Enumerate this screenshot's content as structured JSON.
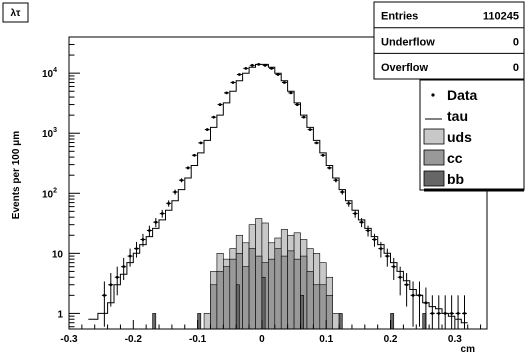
{
  "chart_data": {
    "type": "histogram",
    "title": "λτ",
    "xlabel": "cm",
    "ylabel": "Events per 100 μm",
    "xlim": [
      -0.3,
      0.35
    ],
    "ylim": [
      0.55,
      40000
    ],
    "yscale": "log",
    "grid": false,
    "legend_position": "top-right",
    "x_ticks": [
      "-0.3",
      "-0.2",
      "-0.1",
      "0",
      "0.1",
      "0.2",
      "0.3"
    ],
    "y_ticks": [
      {
        "value": 1,
        "label": "1",
        "exp": ""
      },
      {
        "value": 10,
        "label": "10",
        "exp": ""
      },
      {
        "value": 100,
        "label": "10",
        "exp": "2"
      },
      {
        "value": 1000,
        "label": "10",
        "exp": "3"
      },
      {
        "value": 10000,
        "label": "10",
        "exp": "4"
      }
    ],
    "stats": [
      {
        "label": "Entries",
        "value": "110245"
      },
      {
        "label": "Underflow",
        "value": "0"
      },
      {
        "label": "Overflow",
        "value": "0"
      }
    ],
    "legend": [
      {
        "label": "Data",
        "style": "marker",
        "color": "#000000"
      },
      {
        "label": "tau",
        "style": "line",
        "color": "#000000"
      },
      {
        "label": "uds",
        "style": "fill",
        "color": "#c8c8c8"
      },
      {
        "label": "cc",
        "style": "fill",
        "color": "#999999"
      },
      {
        "label": "bb",
        "style": "fill",
        "color": "#666666"
      }
    ],
    "colors": {
      "uds": "#c8c8c8",
      "cc": "#999999",
      "bb": "#666666",
      "line": "#000000"
    },
    "series": [
      {
        "name": "tau",
        "kind": "step-line",
        "x": [
          -0.27,
          -0.255,
          -0.24,
          -0.23,
          -0.22,
          -0.21,
          -0.2,
          -0.19,
          -0.18,
          -0.17,
          -0.16,
          -0.15,
          -0.14,
          -0.13,
          -0.12,
          -0.11,
          -0.1,
          -0.09,
          -0.08,
          -0.07,
          -0.06,
          -0.05,
          -0.04,
          -0.03,
          -0.02,
          -0.01,
          0,
          0.01,
          0.02,
          0.03,
          0.04,
          0.05,
          0.06,
          0.07,
          0.08,
          0.09,
          0.1,
          0.11,
          0.12,
          0.13,
          0.14,
          0.15,
          0.16,
          0.17,
          0.18,
          0.19,
          0.2,
          0.21,
          0.22,
          0.23,
          0.24,
          0.25,
          0.26,
          0.27,
          0.28,
          0.29,
          0.3,
          0.31,
          0.32
        ],
        "y": [
          0.8,
          1,
          1.5,
          3,
          4.5,
          7,
          10,
          14,
          19,
          26,
          36,
          52,
          75,
          115,
          180,
          290,
          470,
          760,
          1250,
          2000,
          3200,
          5000,
          7500,
          10000,
          12500,
          14000,
          14000,
          12500,
          10000,
          7500,
          5000,
          3200,
          2000,
          1250,
          760,
          470,
          290,
          180,
          115,
          75,
          52,
          36,
          26,
          19,
          14,
          10,
          7,
          5,
          3.5,
          2.5,
          2,
          1.5,
          1.3,
          1.2,
          1,
          0.9,
          0.8,
          0.7,
          0.7
        ]
      },
      {
        "name": "Data",
        "kind": "points",
        "x": [
          -0.245,
          -0.235,
          -0.225,
          -0.215,
          -0.205,
          -0.195,
          -0.185,
          -0.175,
          -0.165,
          -0.155,
          -0.145,
          -0.135,
          -0.125,
          -0.115,
          -0.105,
          -0.095,
          -0.085,
          -0.075,
          -0.065,
          -0.055,
          -0.045,
          -0.035,
          -0.025,
          -0.015,
          -0.005,
          0.005,
          0.015,
          0.025,
          0.035,
          0.045,
          0.055,
          0.065,
          0.075,
          0.085,
          0.095,
          0.105,
          0.115,
          0.125,
          0.135,
          0.145,
          0.155,
          0.165,
          0.175,
          0.185,
          0.195,
          0.205,
          0.215,
          0.225,
          0.235,
          0.245,
          0.255,
          0.265,
          0.275,
          0.285,
          0.295,
          0.305,
          0.315
        ],
        "y": [
          2,
          3,
          4,
          6,
          9,
          12,
          17,
          24,
          33,
          46,
          68,
          105,
          165,
          265,
          430,
          690,
          1150,
          1850,
          3000,
          4700,
          7000,
          9500,
          12000,
          13500,
          14000,
          13500,
          12000,
          9500,
          7000,
          4700,
          3000,
          1850,
          1150,
          690,
          430,
          265,
          165,
          105,
          68,
          46,
          33,
          24,
          17,
          12,
          9,
          6,
          4,
          3,
          2,
          2,
          1.5,
          1,
          1,
          1,
          1,
          1,
          1
        ],
        "yerr": [
          1.4,
          1.7,
          2,
          2.4,
          3,
          3.5,
          4.1,
          4.9,
          5.7,
          6.8,
          8.2,
          10,
          13,
          16,
          21,
          26,
          34,
          43,
          55,
          69,
          84,
          97,
          110,
          116,
          118,
          116,
          110,
          97,
          84,
          69,
          55,
          43,
          34,
          26,
          21,
          16,
          13,
          10,
          8.2,
          6.8,
          5.7,
          4.9,
          4.1,
          3.5,
          3,
          2.4,
          2,
          1.7,
          1.4,
          1.4,
          1.2,
          1,
          1,
          1,
          1,
          1,
          1
        ]
      },
      {
        "name": "uds",
        "kind": "step-fill",
        "x": [
          -0.1,
          -0.09,
          -0.08,
          -0.07,
          -0.06,
          -0.05,
          -0.04,
          -0.03,
          -0.02,
          -0.01,
          0,
          0.01,
          0.02,
          0.03,
          0.04,
          0.05,
          0.06,
          0.07,
          0.08,
          0.09,
          0.1,
          0.11,
          0.12
        ],
        "y": [
          0.55,
          1,
          5,
          10,
          8,
          12,
          20,
          15,
          30,
          38,
          32,
          15,
          18,
          25,
          20,
          22,
          17,
          12,
          10,
          7,
          4,
          1,
          0.55
        ]
      },
      {
        "name": "cc",
        "kind": "step-fill",
        "x": [
          -0.09,
          -0.08,
          -0.07,
          -0.06,
          -0.05,
          -0.04,
          -0.03,
          -0.02,
          -0.01,
          0,
          0.01,
          0.02,
          0.03,
          0.04,
          0.05,
          0.06,
          0.07,
          0.08,
          0.09,
          0.1,
          0.11
        ],
        "y": [
          0.55,
          3,
          5,
          6,
          8,
          10,
          6,
          12,
          9,
          7,
          8,
          12,
          9,
          11,
          8,
          9,
          5,
          3,
          3,
          2,
          0.55
        ]
      },
      {
        "name": "bb",
        "kind": "step-fill",
        "x": [
          -0.17,
          -0.165,
          -0.1,
          -0.095,
          -0.04,
          -0.035,
          0,
          0.005,
          0.06,
          0.065,
          0.12,
          0.125,
          0.2,
          0.205,
          0.25,
          0.255
        ],
        "y": [
          1,
          0.55,
          1,
          0.55,
          3,
          0.55,
          4,
          0.55,
          2,
          0.55,
          1,
          0.55,
          1,
          0.55,
          1,
          0.55
        ]
      }
    ]
  }
}
